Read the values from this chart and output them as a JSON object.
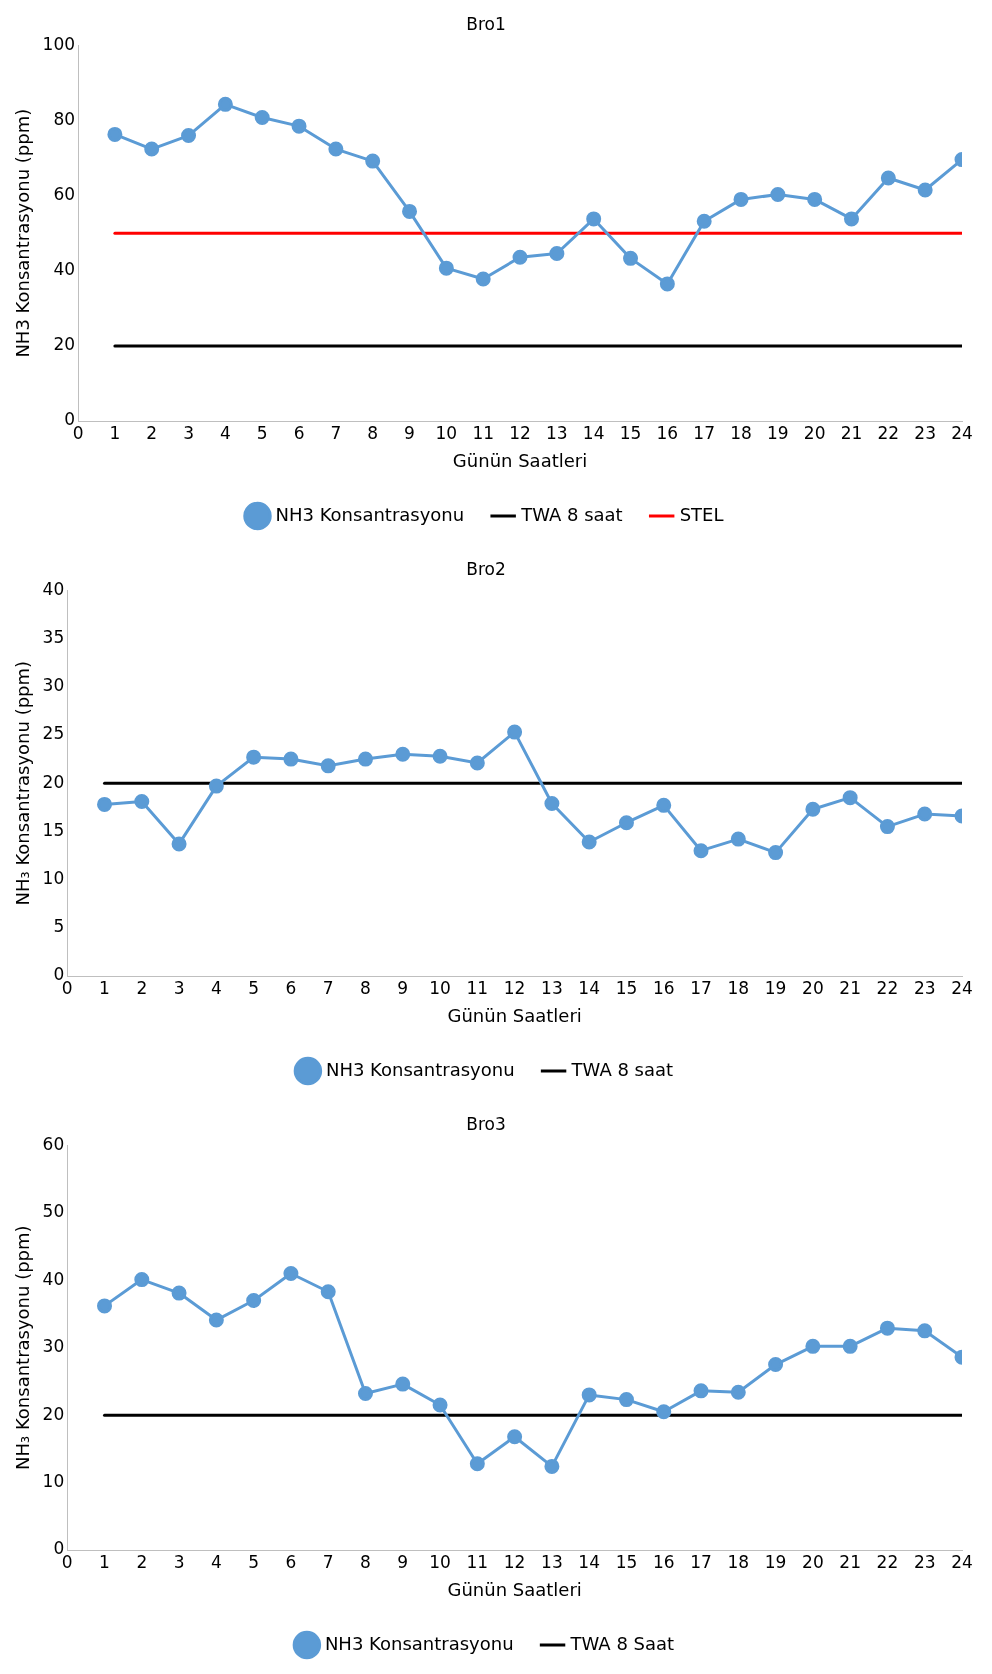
{
  "chart_data": [
    {
      "type": "line",
      "title": "Bro1",
      "xlabel": "Günün Saatleri",
      "ylabel": "NH3 Konsantrasyonu (ppm)",
      "x": [
        1,
        2,
        3,
        4,
        5,
        6,
        7,
        8,
        9,
        10,
        11,
        12,
        13,
        14,
        15,
        16,
        17,
        18,
        19,
        20,
        21,
        22,
        23,
        24
      ],
      "xlim": [
        0,
        24
      ],
      "xticks": [
        0,
        1,
        2,
        3,
        4,
        5,
        6,
        7,
        8,
        9,
        10,
        11,
        12,
        13,
        14,
        15,
        16,
        17,
        18,
        19,
        20,
        21,
        22,
        23,
        24
      ],
      "ylim": [
        0,
        100
      ],
      "yticks": [
        0,
        20,
        40,
        60,
        80,
        100
      ],
      "grid": false,
      "legend": "bottom",
      "series": [
        {
          "name": "NH3 Konsantrasyonu",
          "color": "#5b9bd5",
          "marker": "circle",
          "values": [
            76.3,
            72.4,
            76,
            84.3,
            80.8,
            78.5,
            72.4,
            69.2,
            55.8,
            40.7,
            37.8,
            43.6,
            44.6,
            53.8,
            43.3,
            36.5,
            53.2,
            59,
            60.3,
            59,
            53.8,
            64.7,
            61.5,
            69.6
          ]
        },
        {
          "name": "TWA 8 saat",
          "color": "#000000",
          "marker": "none",
          "values": [
            20,
            20,
            20,
            20,
            20,
            20,
            20,
            20,
            20,
            20,
            20,
            20,
            20,
            20,
            20,
            20,
            20,
            20,
            20,
            20,
            20,
            20,
            20,
            20
          ]
        },
        {
          "name": "STEL",
          "color": "#ff0000",
          "marker": "none",
          "values": [
            50,
            50,
            50,
            50,
            50,
            50,
            50,
            50,
            50,
            50,
            50,
            50,
            50,
            50,
            50,
            50,
            50,
            50,
            50,
            50,
            50,
            50,
            50,
            50
          ]
        }
      ]
    },
    {
      "type": "line",
      "title": "Bro2",
      "xlabel": "Günün Saatleri",
      "ylabel": "NH₃ Konsantrasyonu (ppm)",
      "x": [
        1,
        2,
        3,
        4,
        5,
        6,
        7,
        8,
        9,
        10,
        11,
        12,
        13,
        14,
        15,
        16,
        17,
        18,
        19,
        20,
        21,
        22,
        23,
        24
      ],
      "xlim": [
        0,
        24
      ],
      "xticks": [
        0,
        1,
        2,
        3,
        4,
        5,
        6,
        7,
        8,
        9,
        10,
        11,
        12,
        13,
        14,
        15,
        16,
        17,
        18,
        19,
        20,
        21,
        22,
        23,
        24
      ],
      "ylim": [
        0,
        40
      ],
      "yticks": [
        0,
        5,
        10,
        15,
        20,
        25,
        30,
        35,
        40
      ],
      "grid": false,
      "legend": "bottom",
      "series": [
        {
          "name": "NH3 Konsantrasyonu",
          "color": "#5b9bd5",
          "marker": "circle",
          "values": [
            17.8,
            18.1,
            13.7,
            19.7,
            22.7,
            22.5,
            21.8,
            22.5,
            23,
            22.8,
            22.1,
            25.3,
            17.9,
            13.9,
            15.9,
            17.7,
            13,
            14.2,
            12.8,
            17.3,
            18.5,
            15.5,
            16.8,
            16.6
          ]
        },
        {
          "name": "TWA 8 saat",
          "color": "#000000",
          "marker": "none",
          "values": [
            20,
            20,
            20,
            20,
            20,
            20,
            20,
            20,
            20,
            20,
            20,
            20,
            20,
            20,
            20,
            20,
            20,
            20,
            20,
            20,
            20,
            20,
            20,
            20
          ]
        }
      ]
    },
    {
      "type": "line",
      "title": "Bro3",
      "xlabel": "Günün Saatleri",
      "ylabel": "NH₃ Konsantrasyonu (ppm)",
      "x": [
        1,
        2,
        3,
        4,
        5,
        6,
        7,
        8,
        9,
        10,
        11,
        12,
        13,
        14,
        15,
        16,
        17,
        18,
        19,
        20,
        21,
        22,
        23,
        24
      ],
      "xlim": [
        0,
        24
      ],
      "xticks": [
        0,
        1,
        2,
        3,
        4,
        5,
        6,
        7,
        8,
        9,
        10,
        11,
        12,
        13,
        14,
        15,
        16,
        17,
        18,
        19,
        20,
        21,
        22,
        23,
        24
      ],
      "ylim": [
        0,
        60
      ],
      "yticks": [
        0,
        10,
        20,
        30,
        40,
        50,
        60
      ],
      "grid": false,
      "legend": "bottom",
      "series": [
        {
          "name": "NH3 Konsantrasyonu",
          "color": "#5b9bd5",
          "marker": "circle",
          "values": [
            36.2,
            40.1,
            38.1,
            34.1,
            37,
            41,
            38.3,
            23.2,
            24.6,
            21.5,
            12.8,
            16.8,
            12.4,
            23,
            22.3,
            20.5,
            23.6,
            23.4,
            27.5,
            30.2,
            30.2,
            32.9,
            32.5,
            28.6
          ]
        },
        {
          "name": "TWA 8 Saat",
          "color": "#000000",
          "marker": "none",
          "values": [
            20,
            20,
            20,
            20,
            20,
            20,
            20,
            20,
            20,
            20,
            20,
            20,
            20,
            20,
            20,
            20,
            20,
            20,
            20,
            20,
            20,
            20,
            20,
            20
          ]
        }
      ]
    }
  ]
}
